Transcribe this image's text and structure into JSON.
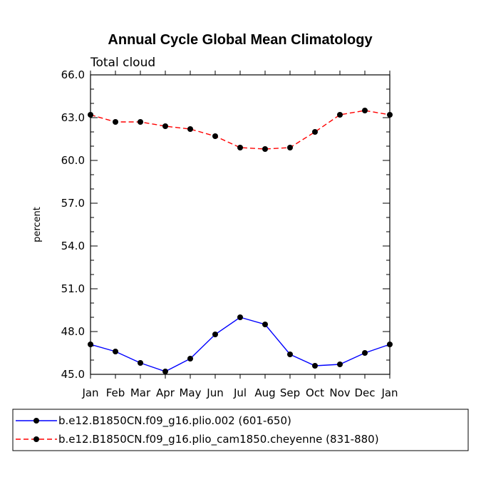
{
  "chart_data": {
    "type": "line",
    "title": "Annual Cycle Global Mean Climatology",
    "subtitle": "Total cloud",
    "xlabel": "",
    "ylabel": "percent",
    "categories": [
      "Jan",
      "Feb",
      "Mar",
      "Apr",
      "May",
      "Jun",
      "Jul",
      "Aug",
      "Sep",
      "Oct",
      "Nov",
      "Dec",
      "Jan"
    ],
    "ylim": [
      45.0,
      66.0
    ],
    "yticks": [
      "45.0",
      "48.0",
      "51.0",
      "54.0",
      "57.0",
      "60.0",
      "63.0",
      "66.0"
    ],
    "series": [
      {
        "name": "b.e12.B1850CN.f09_g16.plio.002 (601-650)",
        "color": "#0000ff",
        "dash": "solid",
        "values": [
          47.1,
          46.6,
          45.8,
          45.2,
          46.1,
          47.8,
          49.0,
          48.5,
          46.4,
          45.6,
          45.7,
          46.5,
          47.1
        ]
      },
      {
        "name": "b.e12.B1850CN.f09_g16.plio_cam1850.cheyenne (831-880)",
        "color": "#ff0000",
        "dash": "dashed",
        "values": [
          63.2,
          62.7,
          62.7,
          62.4,
          62.2,
          61.7,
          60.9,
          60.8,
          60.9,
          62.0,
          63.2,
          63.5,
          63.2
        ]
      }
    ],
    "legend_position": "bottom"
  }
}
